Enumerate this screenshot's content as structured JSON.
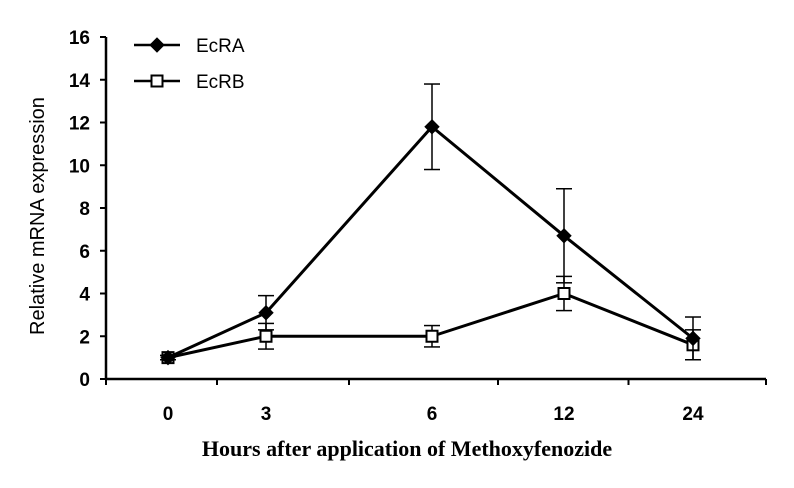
{
  "chart_data": {
    "type": "line",
    "xlabel": "Hours after application of Methoxyfenozide",
    "ylabel": "Relative mRNA expression",
    "categories": [
      "0",
      "3",
      "6",
      "12",
      "24"
    ],
    "ylim": [
      0,
      16
    ],
    "yticks": [
      "0",
      "2",
      "4",
      "6",
      "8",
      "10",
      "12",
      "14",
      "16"
    ],
    "grid": false,
    "legend": "top-left",
    "series": [
      {
        "name": "EcRA",
        "marker": "filled-diamond",
        "color": "#000000",
        "values": [
          1.0,
          3.1,
          11.8,
          6.7,
          1.9
        ],
        "errors": [
          0.1,
          0.8,
          2.0,
          2.2,
          1.0
        ]
      },
      {
        "name": "EcRB",
        "marker": "open-square",
        "color": "#000000",
        "values": [
          1.0,
          2.0,
          2.0,
          4.0,
          1.6
        ],
        "errors": [
          0.1,
          0.6,
          0.5,
          0.8,
          0.7
        ]
      }
    ]
  }
}
